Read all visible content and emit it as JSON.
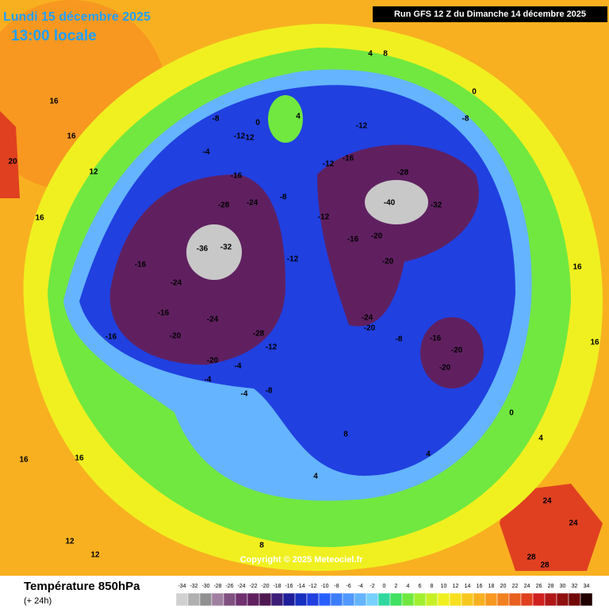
{
  "header": {
    "date": "Lundi 15 décembre 2025",
    "time": "13:00 locale",
    "run": "Run GFS 12 Z du Dimanche 14 décembre 2025"
  },
  "copyright": "Copyright © 2025 Meteociel.fr",
  "legend": {
    "title": "Température 850hPa",
    "lead": "(+ 24h)",
    "ticks": [
      -34,
      -32,
      -30,
      -28,
      -26,
      -24,
      -22,
      -20,
      -18,
      -16,
      -14,
      -12,
      -10,
      -8,
      -6,
      -4,
      -2,
      0,
      2,
      4,
      6,
      8,
      10,
      12,
      14,
      16,
      18,
      20,
      22,
      24,
      26,
      28,
      30,
      32,
      34
    ],
    "colors": [
      "#d0d0d0",
      "#b0b0b0",
      "#909090",
      "#a080a0",
      "#805080",
      "#703070",
      "#602060",
      "#501850",
      "#3c1e78",
      "#1e1e9a",
      "#1830c0",
      "#2040e0",
      "#2860ff",
      "#3c7cff",
      "#5098ff",
      "#64b4ff",
      "#78d0ff",
      "#30d8a0",
      "#40e060",
      "#70e840",
      "#a0f030",
      "#c8f028",
      "#f0f020",
      "#f8e020",
      "#f8c820",
      "#f8b020",
      "#f89820",
      "#f08020",
      "#e86020",
      "#e04020",
      "#d02020",
      "#b01818",
      "#901010",
      "#700808",
      "#200000"
    ]
  },
  "map_labels": [
    16,
    16,
    20,
    12,
    16,
    -8,
    -4,
    -12,
    -16,
    -24,
    -28,
    -32,
    -36,
    -16,
    -24,
    -16,
    -24,
    -20,
    -16,
    -20,
    -12,
    -4,
    -28,
    -4,
    -4,
    -8,
    -12,
    -8,
    -12,
    -16,
    -20,
    -20,
    -24,
    -20,
    -8,
    -16,
    -20,
    -20,
    -32,
    -40,
    -28,
    -16,
    -12,
    -12,
    -8,
    0,
    4,
    0,
    12,
    4,
    8,
    16,
    16,
    24,
    24,
    28,
    28,
    16,
    12,
    16,
    8,
    4,
    8,
    4,
    0,
    4,
    12
  ]
}
